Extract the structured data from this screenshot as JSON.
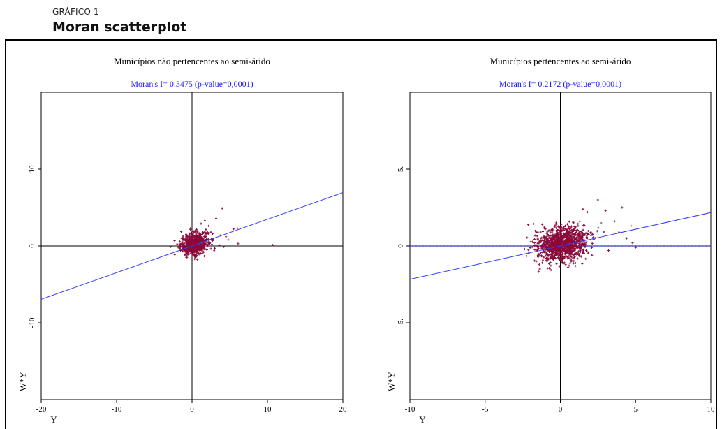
{
  "figure": {
    "label": "GRÁFICO 1",
    "title": "Moran scatterplot"
  },
  "colors": {
    "points": "#8b0a3a",
    "regression": "#2e3cff",
    "axes": "#000000",
    "subtitle": "#1a1aff"
  },
  "chart_data": [
    {
      "type": "scatter",
      "title": "Municípios não pertencentes ao semi-árido",
      "subtitle": "Moran's I= 0.3475 (p-value=0,0001)",
      "xlabel": "Y",
      "ylabel": "W*Y",
      "xlim": [
        -20,
        20
      ],
      "ylim": [
        -20,
        20
      ],
      "xticks": [
        -20,
        -10,
        0,
        10,
        20
      ],
      "xtick_labels": [
        "-20",
        "-10",
        "0",
        "10",
        "20"
      ],
      "yticks": [
        10,
        0,
        -10
      ],
      "ytick_labels": [
        "10",
        "0",
        "-10"
      ],
      "moran_i": 0.3475,
      "regression": {
        "slope": 0.3475,
        "intercept": 0,
        "style": "solid"
      },
      "point_cloud": {
        "center": [
          0.3,
          0.3
        ],
        "spread": [
          0.9,
          0.7
        ],
        "count": 650
      },
      "outliers": [
        [
          4.0,
          4.9
        ],
        [
          3.2,
          3.6
        ],
        [
          1.7,
          3.3
        ],
        [
          5.5,
          2.2
        ],
        [
          6.0,
          2.3
        ],
        [
          3.6,
          0.1
        ],
        [
          10.7,
          0.1
        ],
        [
          2.5,
          1.8
        ],
        [
          4.5,
          1.2
        ],
        [
          4.8,
          0.8
        ],
        [
          3.8,
          1.4
        ],
        [
          2.8,
          0.9
        ],
        [
          6.1,
          0.3
        ],
        [
          2.2,
          2.6
        ],
        [
          3.0,
          -0.3
        ],
        [
          4.2,
          -0.1
        ],
        [
          1.2,
          2.9
        ],
        [
          -0.9,
          -0.6
        ],
        [
          -1.0,
          -0.3
        ]
      ]
    },
    {
      "type": "scatter",
      "title": "Municípios pertencentes ao semi-árido",
      "subtitle": "Moran's I= 0.2172 (p-value=0,0001)",
      "xlabel": "Y",
      "ylabel": "W*Y",
      "xlim": [
        -10,
        10
      ],
      "ylim": [
        -10,
        10
      ],
      "xticks": [
        -10,
        -5,
        0,
        5,
        10
      ],
      "xtick_labels": [
        "-10",
        "-5",
        "0",
        "5",
        "10"
      ],
      "yticks": [
        5,
        0,
        -5
      ],
      "ytick_labels": [
        "5.",
        "0",
        "-5."
      ],
      "moran_i": 0.2172,
      "regression": {
        "slope": 0.2172,
        "intercept": 0,
        "style": "solid"
      },
      "reference_line": {
        "y": 0,
        "style": "dashed"
      },
      "point_cloud": {
        "center": [
          0.1,
          0.1
        ],
        "spread": [
          0.85,
          0.55
        ],
        "count": 1100
      },
      "outliers": [
        [
          2.5,
          3.0
        ],
        [
          4.1,
          2.5
        ],
        [
          3.0,
          2.3
        ],
        [
          1.8,
          2.2
        ],
        [
          3.6,
          1.6
        ],
        [
          4.7,
          1.3
        ],
        [
          4.8,
          0.2
        ],
        [
          5.0,
          -0.1
        ],
        [
          3.9,
          0.9
        ],
        [
          2.7,
          1.5
        ],
        [
          3.2,
          -0.3
        ],
        [
          4.4,
          0.5
        ],
        [
          -1.6,
          -1.0
        ],
        [
          -1.4,
          -1.2
        ],
        [
          -1.5,
          0.9
        ],
        [
          2.1,
          -0.6
        ],
        [
          1.5,
          2.4
        ],
        [
          -1.2,
          1.4
        ],
        [
          1.0,
          -1.3
        ]
      ]
    }
  ]
}
